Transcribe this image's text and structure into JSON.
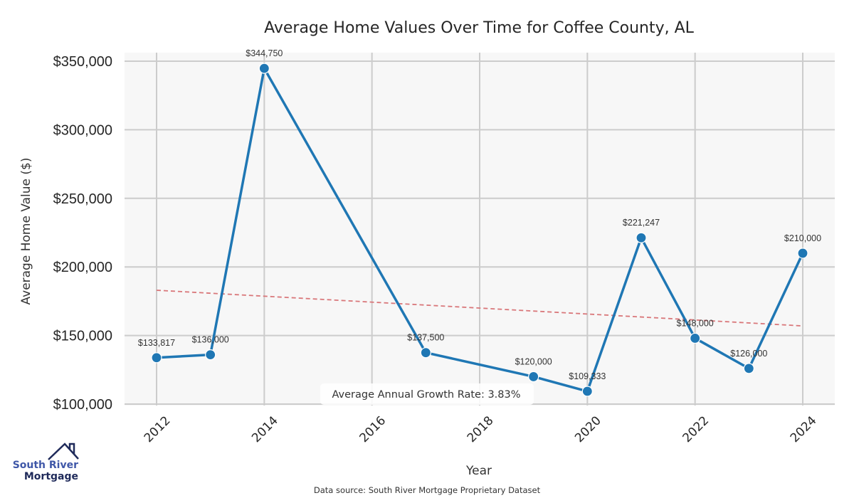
{
  "chart_data": {
    "type": "line",
    "title": "Average Home Values Over Time for Coffee County, AL",
    "xlabel": "Year",
    "ylabel": "Average Home Value ($)",
    "xlim": [
      2011.4,
      2024.6
    ],
    "ylim": [
      98000,
      354000
    ],
    "x_ticks": [
      2012,
      2014,
      2016,
      2018,
      2020,
      2022,
      2024
    ],
    "x_tick_labels": [
      "2012",
      "2014",
      "2016",
      "2018",
      "2020",
      "2022",
      "2024"
    ],
    "y_ticks": [
      100000,
      150000,
      200000,
      250000,
      300000,
      350000
    ],
    "y_tick_labels": [
      "$100,000",
      "$150,000",
      "$200,000",
      "$250,000",
      "$300,000",
      "$350,000"
    ],
    "grid": true,
    "series": [
      {
        "name": "Average Home Value",
        "color": "#1f77b4",
        "x": [
          2012,
          2013,
          2014,
          2017,
          2019,
          2020,
          2021,
          2022,
          2023,
          2024
        ],
        "y": [
          133817,
          136000,
          344750,
          137500,
          120000,
          109333,
          221247,
          148000,
          126000,
          210000
        ],
        "labels": [
          "$133,817",
          "$136,000",
          "$344,750",
          "$137,500",
          "$120,000",
          "$109,333",
          "$221,247",
          "$148,000",
          "$126,000",
          "$210,000"
        ]
      }
    ],
    "trend_line": {
      "name": "Trend",
      "color": "#d9777a",
      "style": "dashed",
      "x": [
        2012,
        2024
      ],
      "y": [
        183000,
        157000
      ]
    },
    "annotation": "Average Annual Growth Rate: 3.83%",
    "source_note": "Data source: South River Mortgage Proprietary Dataset"
  },
  "logo": {
    "line1": "South River",
    "line2": "Mortgage",
    "color_primary": "#3f57a8",
    "color_dark": "#1f2a5a"
  },
  "colors": {
    "plot_background": "#f7f7f7",
    "grid": "#cccccc"
  }
}
